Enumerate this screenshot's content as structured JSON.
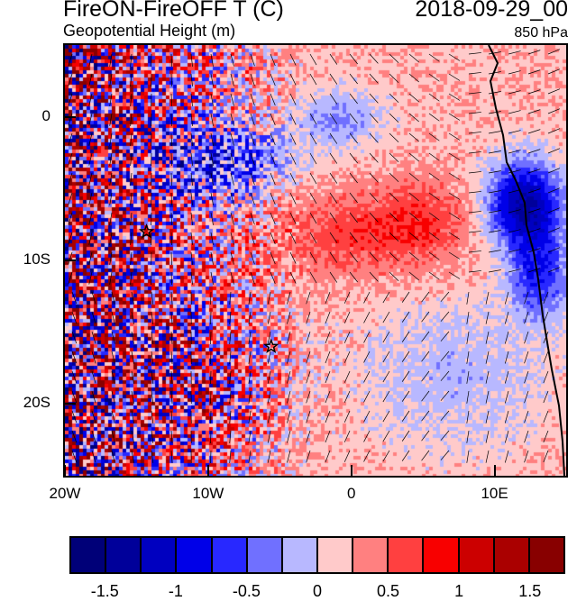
{
  "title": "FireON-FireOFF T (C)",
  "date": "2018-09-29_00",
  "subtitle": "Geopotential Height (m)",
  "level": "850 hPa",
  "map": {
    "lon_range": [
      -20,
      15
    ],
    "lat_range": [
      -25,
      5
    ],
    "x_ticks": [
      {
        "lon": -20,
        "label": "20W"
      },
      {
        "lon": -10,
        "label": "10W"
      },
      {
        "lon": 0,
        "label": "0"
      },
      {
        "lon": 10,
        "label": "10E"
      }
    ],
    "y_ticks": [
      {
        "lat": 0,
        "label": "0"
      },
      {
        "lat": -10,
        "label": "10S"
      },
      {
        "lat": -20,
        "label": "20S"
      }
    ],
    "markers": [
      {
        "type": "star",
        "lon": -14.3,
        "lat": -8.0
      },
      {
        "type": "star",
        "lon": -5.6,
        "lat": -16.0
      }
    ],
    "overlays": [
      "wind-barbs",
      "coastline",
      "geopotential-height-contours"
    ]
  },
  "colorbar": {
    "colors": [
      "#000078",
      "#00009a",
      "#0000c0",
      "#0000e8",
      "#2828ff",
      "#7070ff",
      "#b8b8ff",
      "#ffcaca",
      "#ff8080",
      "#ff4040",
      "#f80000",
      "#cc0000",
      "#aa0000",
      "#880000"
    ],
    "labels": [
      "-1.5",
      "-1",
      "-0.5",
      "0",
      "0.5",
      "1",
      "1.5"
    ],
    "levels": [
      -1.5,
      -1.25,
      -1,
      -0.75,
      -0.5,
      -0.25,
      0,
      0.25,
      0.5,
      0.75,
      1,
      1.25,
      1.5
    ]
  }
}
